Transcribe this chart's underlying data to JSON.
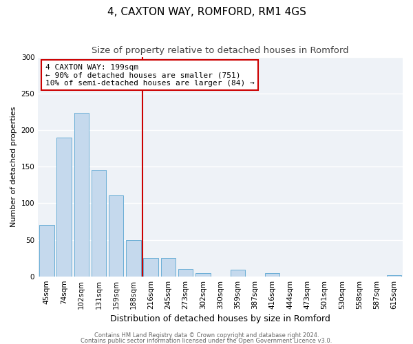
{
  "title": "4, CAXTON WAY, ROMFORD, RM1 4GS",
  "subtitle": "Size of property relative to detached houses in Romford",
  "xlabel": "Distribution of detached houses by size in Romford",
  "ylabel": "Number of detached properties",
  "bar_labels": [
    "45sqm",
    "74sqm",
    "102sqm",
    "131sqm",
    "159sqm",
    "188sqm",
    "216sqm",
    "245sqm",
    "273sqm",
    "302sqm",
    "330sqm",
    "359sqm",
    "387sqm",
    "416sqm",
    "444sqm",
    "473sqm",
    "501sqm",
    "530sqm",
    "558sqm",
    "587sqm",
    "615sqm"
  ],
  "bar_heights": [
    70,
    190,
    224,
    146,
    111,
    50,
    25,
    25,
    10,
    4,
    0,
    9,
    0,
    4,
    0,
    0,
    0,
    0,
    0,
    0,
    2
  ],
  "bar_color": "#c5d9ed",
  "bar_edgecolor": "#6aaed6",
  "vline_color": "#cc0000",
  "annotation_text": "4 CAXTON WAY: 199sqm\n← 90% of detached houses are smaller (751)\n10% of semi-detached houses are larger (84) →",
  "annotation_box_edgecolor": "#cc0000",
  "ylim": [
    0,
    300
  ],
  "yticks": [
    0,
    50,
    100,
    150,
    200,
    250,
    300
  ],
  "footer1": "Contains HM Land Registry data © Crown copyright and database right 2024.",
  "footer2": "Contains public sector information licensed under the Open Government Licence v3.0.",
  "title_fontsize": 11,
  "subtitle_fontsize": 9.5,
  "xlabel_fontsize": 9,
  "ylabel_fontsize": 8,
  "tick_fontsize": 7.5,
  "annotation_fontsize": 8,
  "footer_fontsize": 6
}
